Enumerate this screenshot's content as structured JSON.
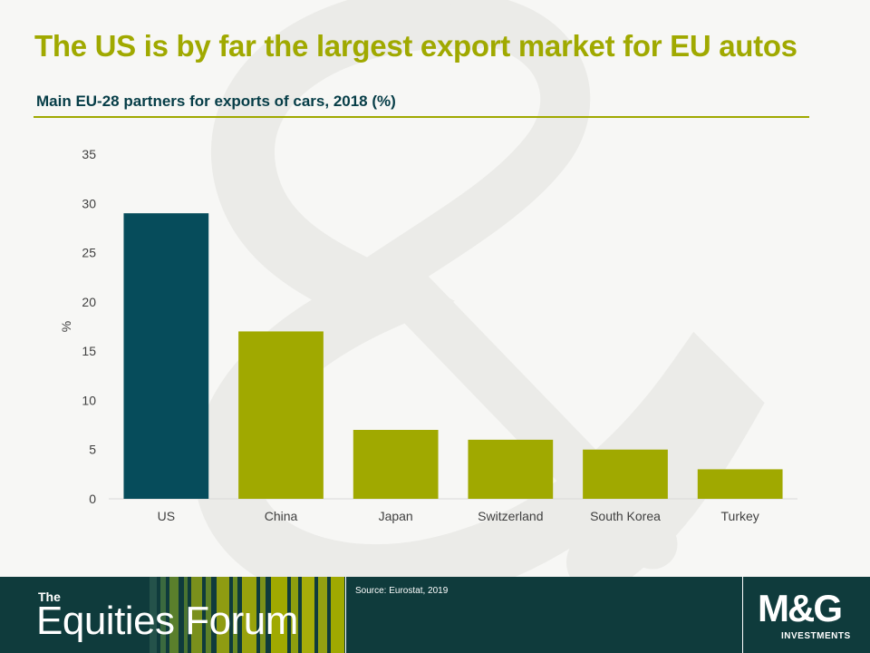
{
  "slide": {
    "title": "The US is by far the largest export market for EU autos",
    "subtitle": "Main EU-28 partners for exports of cars, 2018 (%)"
  },
  "chart_data": {
    "type": "bar",
    "categories": [
      "US",
      "China",
      "Japan",
      "Switzerland",
      "South Korea",
      "Turkey"
    ],
    "values": [
      29,
      17,
      7,
      6,
      5,
      3
    ],
    "title": "",
    "xlabel": "",
    "ylabel": "%",
    "ylim": [
      0,
      35
    ],
    "yticks": [
      0,
      5,
      10,
      15,
      20,
      25,
      30,
      35
    ],
    "grid": false,
    "legend": "none",
    "colors": {
      "highlight": "#064c5b",
      "default": "#a0a900",
      "axis_text": "#404040",
      "baseline": "#d9d9d9"
    },
    "highlight_category": "US"
  },
  "footer": {
    "brand_small": "The",
    "brand_big": "Equities Forum",
    "source": "Source: Eurostat, 2019",
    "logo_text": "M&G",
    "logo_sub": "INVESTMENTS",
    "background": "#0f3b3c"
  }
}
